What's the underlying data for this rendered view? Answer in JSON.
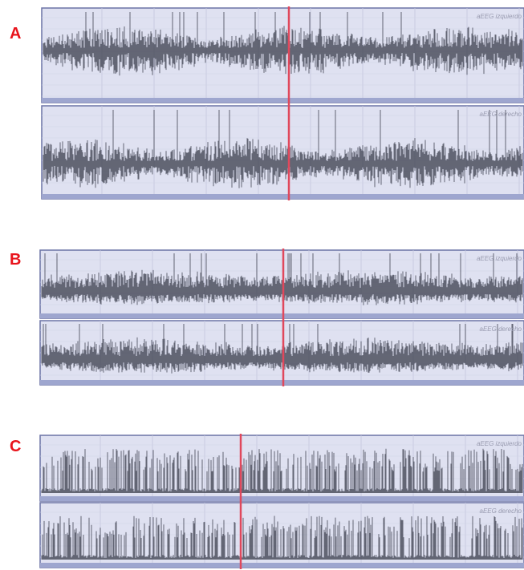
{
  "panels": [
    {
      "label": "A",
      "traces": [
        {
          "label": "aEEG izquierdo"
        },
        {
          "label": "aEEG derecho"
        }
      ]
    },
    {
      "label": "B",
      "traces": [
        {
          "label": "aEEG izquierdo"
        },
        {
          "label": "aEEG derecho"
        }
      ]
    },
    {
      "label": "C",
      "traces": [
        {
          "label": "aEEG izquierdo"
        },
        {
          "label": "aEEG derecho"
        }
      ]
    }
  ]
}
